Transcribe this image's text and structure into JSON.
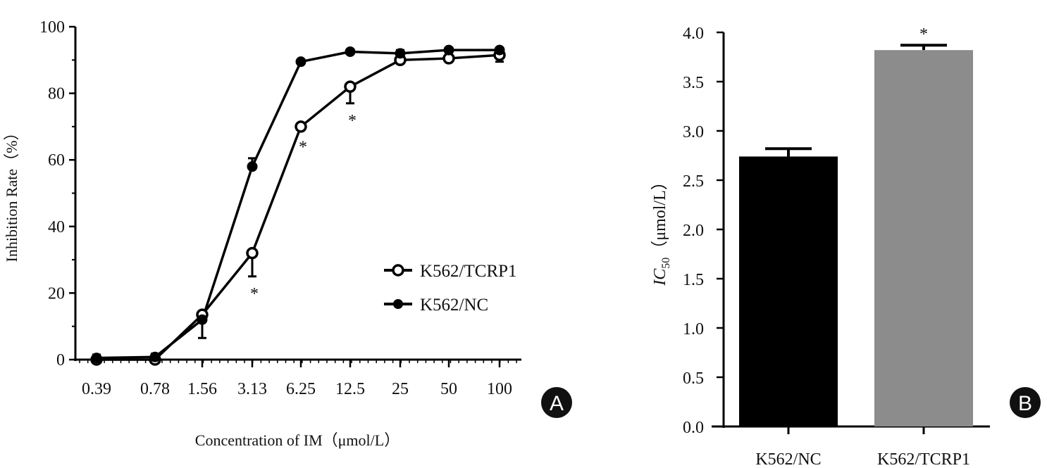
{
  "chart_data": [
    {
      "type": "line",
      "panel_label": "A",
      "xlabel": "Concentration of IM（μmol/L）",
      "ylabel": "Inhibition Rate（%）",
      "categories": [
        "0.39",
        "0.78",
        "1.56",
        "3.13",
        "6.25",
        "12.5",
        "25",
        "50",
        "100"
      ],
      "ylim": [
        0,
        100
      ],
      "yticks": [
        "0",
        "20",
        "40",
        "60",
        "80",
        "100"
      ],
      "grid": false,
      "legend_position": "center-right",
      "series": [
        {
          "name": "K562/TCRP1",
          "marker": "open-circle",
          "values": [
            0,
            0,
            13.5,
            32,
            70,
            82,
            90,
            90.5,
            91.5
          ],
          "error": [
            1,
            1,
            7,
            7,
            1,
            5,
            1,
            1,
            2
          ],
          "error_direction": "down"
        },
        {
          "name": "K562/NC",
          "marker": "filled-circle",
          "values": [
            0.5,
            0.8,
            12,
            58,
            89.5,
            92.5,
            92,
            93,
            93
          ],
          "error": [
            1,
            1,
            1,
            2.5,
            0.5,
            0.5,
            1,
            0.5,
            0.5
          ],
          "error_direction": "up"
        }
      ],
      "annotations": [
        {
          "category": "3.13",
          "text": "*"
        },
        {
          "category": "6.25",
          "text": "*"
        },
        {
          "category": "12.5",
          "text": "*"
        }
      ]
    },
    {
      "type": "bar",
      "panel_label": "B",
      "ylabel_main": "IC",
      "ylabel_sub": "50",
      "ylabel_unit": "（μmol/L）",
      "categories": [
        "K562/NC",
        "K562/TCRP1"
      ],
      "values": [
        2.74,
        3.82
      ],
      "error": [
        0.08,
        0.05
      ],
      "colors": [
        "#000000",
        "#8c8c8c"
      ],
      "ylim": [
        0,
        4.0
      ],
      "yticks": [
        "0.0",
        "0.5",
        "1.0",
        "1.5",
        "2.0",
        "2.5",
        "3.0",
        "3.5",
        "4.0"
      ],
      "annotations": [
        {
          "category": "K562/TCRP1",
          "text": "*"
        }
      ]
    }
  ]
}
